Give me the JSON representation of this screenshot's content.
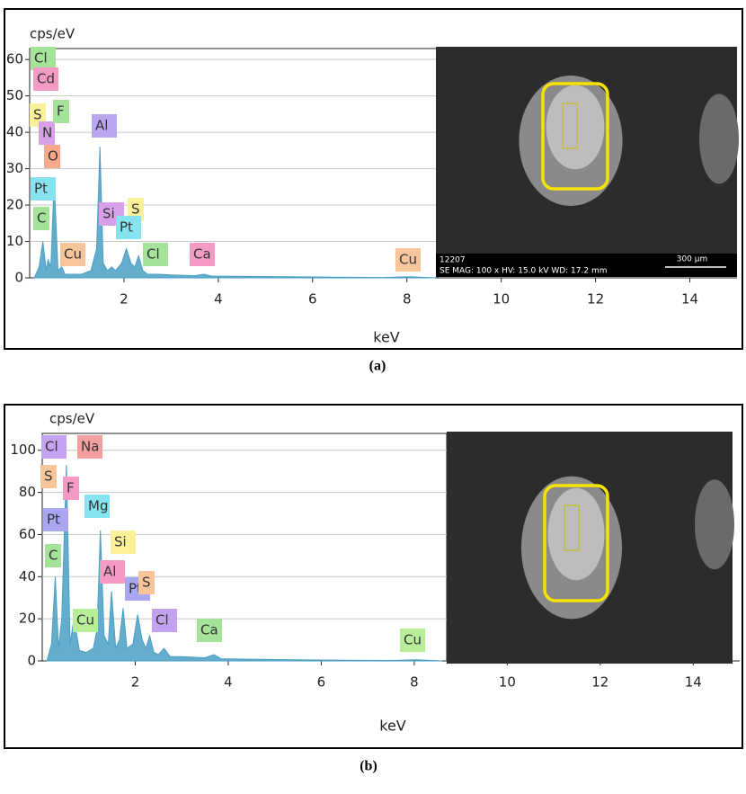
{
  "chart_data": [
    {
      "type": "area",
      "caption": "(a)",
      "ylabel": "cps/eV",
      "xlabel": "keV",
      "xlim": [
        0,
        15
      ],
      "xticks": [
        2,
        4,
        6,
        8,
        10,
        12,
        14
      ],
      "ylim": [
        0,
        63
      ],
      "yticks": [
        0,
        10,
        20,
        30,
        40,
        50,
        60
      ],
      "grid": true,
      "series": [
        {
          "color": "#4a9fc4",
          "x": [
            0.1,
            0.2,
            0.28,
            0.35,
            0.39,
            0.45,
            0.52,
            0.6,
            0.68,
            0.75,
            0.9,
            1.1,
            1.3,
            1.42,
            1.49,
            1.56,
            1.65,
            1.74,
            1.82,
            1.95,
            2.05,
            2.15,
            2.23,
            2.31,
            2.4,
            2.5,
            2.62,
            2.75,
            3.0,
            3.5,
            3.69,
            3.85,
            4.5,
            5.5,
            6.5,
            7.5,
            8.05,
            8.6
          ],
          "values": [
            0,
            3,
            10,
            2,
            5,
            3,
            27,
            2,
            3,
            1,
            1,
            1,
            2,
            8,
            36,
            4,
            2,
            3,
            2,
            4,
            8,
            4,
            3,
            6,
            2,
            1,
            1,
            1,
            0.8,
            0.6,
            1,
            0.5,
            0.4,
            0.3,
            0.2,
            0.1,
            0.3,
            0
          ]
        }
      ],
      "annotations": [
        {
          "text": "Cl",
          "color": "#a5e39a"
        },
        {
          "text": "Cd",
          "color": "#f59ac4"
        },
        {
          "text": "S",
          "color": "#fbf19b"
        },
        {
          "text": "N",
          "color": "#d8a0e8"
        },
        {
          "text": "F",
          "color": "#a5e39a"
        },
        {
          "text": "O",
          "color": "#f7a98e"
        },
        {
          "text": "Al",
          "color": "#b9a6ee"
        },
        {
          "text": "Pt",
          "color": "#86e3ef"
        },
        {
          "text": "C",
          "color": "#a5e39a"
        },
        {
          "text": "Si",
          "color": "#d8a0e8"
        },
        {
          "text": "S",
          "color": "#fbf19b"
        },
        {
          "text": "Pt",
          "color": "#86e3ef"
        },
        {
          "text": "Cu",
          "color": "#f8c59b"
        },
        {
          "text": "Cl",
          "color": "#a5e39a"
        },
        {
          "text": "Ca",
          "color": "#f59ac4"
        },
        {
          "text": "Cu",
          "color": "#f8c59b"
        }
      ],
      "image_text": [
        "12207",
        "SE  MAG: 100 x  HV: 15.0 kV  WD: 17.2 mm",
        "300 µm"
      ]
    },
    {
      "type": "area",
      "caption": "(b)",
      "ylabel": "cps/eV",
      "xlabel": "keV",
      "xlim": [
        0,
        15
      ],
      "xticks": [
        2,
        4,
        6,
        8,
        10,
        12,
        14
      ],
      "ylim": [
        0,
        108
      ],
      "yticks": [
        0,
        20,
        40,
        60,
        80,
        100
      ],
      "grid": true,
      "series": [
        {
          "color": "#4a9fc4",
          "x": [
            0.1,
            0.2,
            0.28,
            0.35,
            0.42,
            0.52,
            0.6,
            0.68,
            0.8,
            0.95,
            1.1,
            1.18,
            1.25,
            1.33,
            1.42,
            1.49,
            1.58,
            1.66,
            1.74,
            1.82,
            1.95,
            2.05,
            2.15,
            2.23,
            2.31,
            2.4,
            2.5,
            2.62,
            2.75,
            3.0,
            3.5,
            3.69,
            3.85,
            4.5,
            5.5,
            6.5,
            7.5,
            8.05,
            8.6
          ],
          "values": [
            0,
            8,
            40,
            6,
            20,
            93,
            8,
            20,
            5,
            4,
            6,
            15,
            62,
            12,
            8,
            33,
            6,
            10,
            25,
            6,
            8,
            22,
            10,
            6,
            12,
            4,
            3,
            6,
            2,
            2,
            1.5,
            3,
            1,
            0.8,
            0.5,
            0.3,
            0.2,
            0.5,
            0
          ]
        }
      ],
      "annotations": [
        {
          "text": "Cl",
          "color": "#c3a3ef"
        },
        {
          "text": "Na",
          "color": "#f5a0a0"
        },
        {
          "text": "S",
          "color": "#f8c59b"
        },
        {
          "text": "F",
          "color": "#f59ac4"
        },
        {
          "text": "Pt",
          "color": "#a9a6f2"
        },
        {
          "text": "Mg",
          "color": "#86e3ef"
        },
        {
          "text": "C",
          "color": "#a5e39a"
        },
        {
          "text": "Si",
          "color": "#fbf19b"
        },
        {
          "text": "Al",
          "color": "#f59ac4"
        },
        {
          "text": "Pt",
          "color": "#a9a6f2"
        },
        {
          "text": "S",
          "color": "#f8c59b"
        },
        {
          "text": "Cu",
          "color": "#b8ee9a"
        },
        {
          "text": "Cl",
          "color": "#c3a3ef"
        },
        {
          "text": "Ca",
          "color": "#a5e39a"
        },
        {
          "text": "Cu",
          "color": "#b8ee9a"
        }
      ]
    }
  ]
}
